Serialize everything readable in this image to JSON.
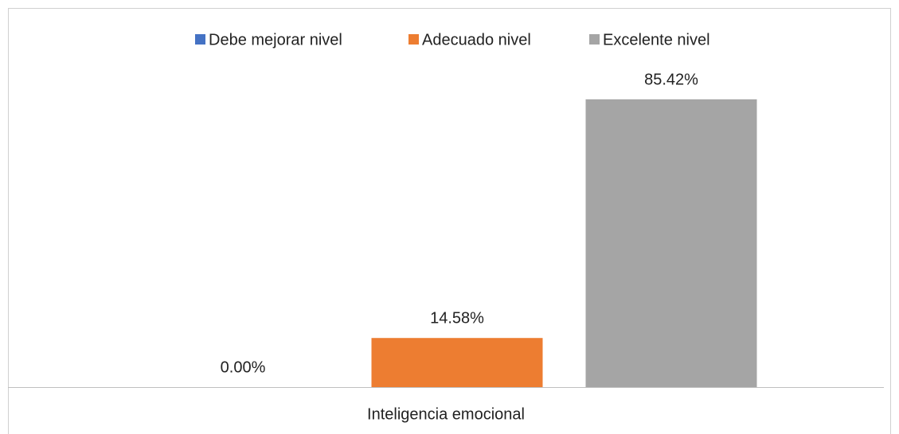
{
  "chart_data": {
    "type": "bar",
    "categories": [
      "Inteligencia emocional"
    ],
    "series": [
      {
        "name": "Debe mejorar nivel",
        "color": "#4472c4",
        "values": [
          0
        ],
        "value_labels": [
          "0.00%"
        ]
      },
      {
        "name": "Adecuado nivel",
        "color": "#ed7d31",
        "values": [
          14.58
        ],
        "value_labels": [
          "14.58%"
        ]
      },
      {
        "name": "Excelente nivel",
        "color": "#a5a5a5",
        "values": [
          85.42
        ],
        "value_labels": [
          "85.42%"
        ]
      }
    ],
    "legend": "top"
  }
}
